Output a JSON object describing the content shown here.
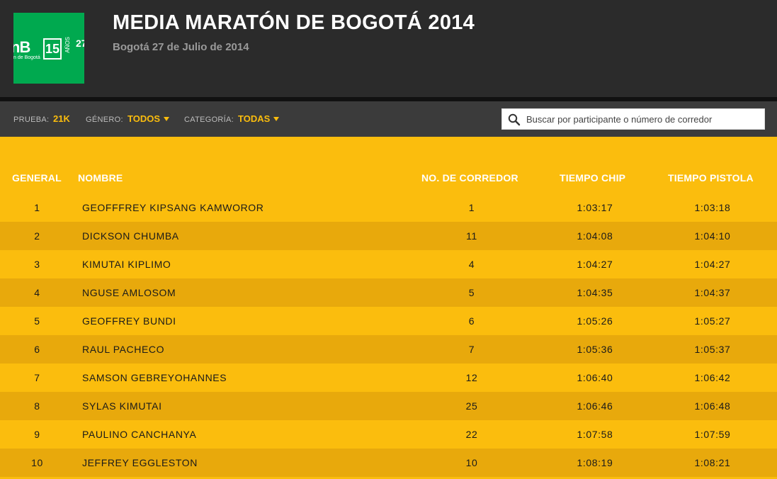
{
  "header": {
    "title": "MEDIA MARATÓN DE BOGOTÁ 2014",
    "subtitle": "Bogotá 27 de Julio de 2014",
    "logo": {
      "mark": "nB",
      "sub": "n de Bogotá",
      "badge": "15",
      "years": "AÑOS",
      "date": "27"
    }
  },
  "filters": {
    "prueba_label": "PRUEBA:",
    "prueba_value": "21K",
    "genero_label": "GÉNERO:",
    "genero_value": "TODOS",
    "categoria_label": "CATEGORÍA:",
    "categoria_value": "TODAS",
    "search_placeholder": "Buscar por participante o número de corredor"
  },
  "table": {
    "columns": {
      "general": "GENERAL",
      "nombre": "NOMBRE",
      "numero": "NO. DE CORREDOR",
      "chip": "TIEMPO CHIP",
      "pistola": "TIEMPO PISTOLA"
    },
    "rows": [
      {
        "pos": "1",
        "name": "GEOFFFREY KIPSANG KAMWOROR",
        "num": "1",
        "chip": "1:03:17",
        "gun": "1:03:18"
      },
      {
        "pos": "2",
        "name": "DICKSON CHUMBA",
        "num": "11",
        "chip": "1:04:08",
        "gun": "1:04:10"
      },
      {
        "pos": "3",
        "name": "KIMUTAI KIPLIMO",
        "num": "4",
        "chip": "1:04:27",
        "gun": "1:04:27"
      },
      {
        "pos": "4",
        "name": "NGUSE AMLOSOM",
        "num": "5",
        "chip": "1:04:35",
        "gun": "1:04:37"
      },
      {
        "pos": "5",
        "name": "GEOFFREY BUNDI",
        "num": "6",
        "chip": "1:05:26",
        "gun": "1:05:27"
      },
      {
        "pos": "6",
        "name": "RAUL PACHECO",
        "num": "7",
        "chip": "1:05:36",
        "gun": "1:05:37"
      },
      {
        "pos": "7",
        "name": "SAMSON GEBREYOHANNES",
        "num": "12",
        "chip": "1:06:40",
        "gun": "1:06:42"
      },
      {
        "pos": "8",
        "name": "SYLAS KIMUTAI",
        "num": "25",
        "chip": "1:06:46",
        "gun": "1:06:48"
      },
      {
        "pos": "9",
        "name": "PAULINO CANCHANYA",
        "num": "22",
        "chip": "1:07:58",
        "gun": "1:07:59"
      },
      {
        "pos": "10",
        "name": "JEFFREY EGGLESTON",
        "num": "10",
        "chip": "1:08:19",
        "gun": "1:08:21"
      }
    ]
  },
  "colors": {
    "accent": "#fbbd0d",
    "row_alt": "#e8a90c",
    "header_bg": "#2b2b2b",
    "filter_bg": "#3b3b3b",
    "logo_bg": "#00a94f"
  },
  "icons": {
    "search": "search-icon",
    "dropdown": "chevron-down-icon"
  }
}
